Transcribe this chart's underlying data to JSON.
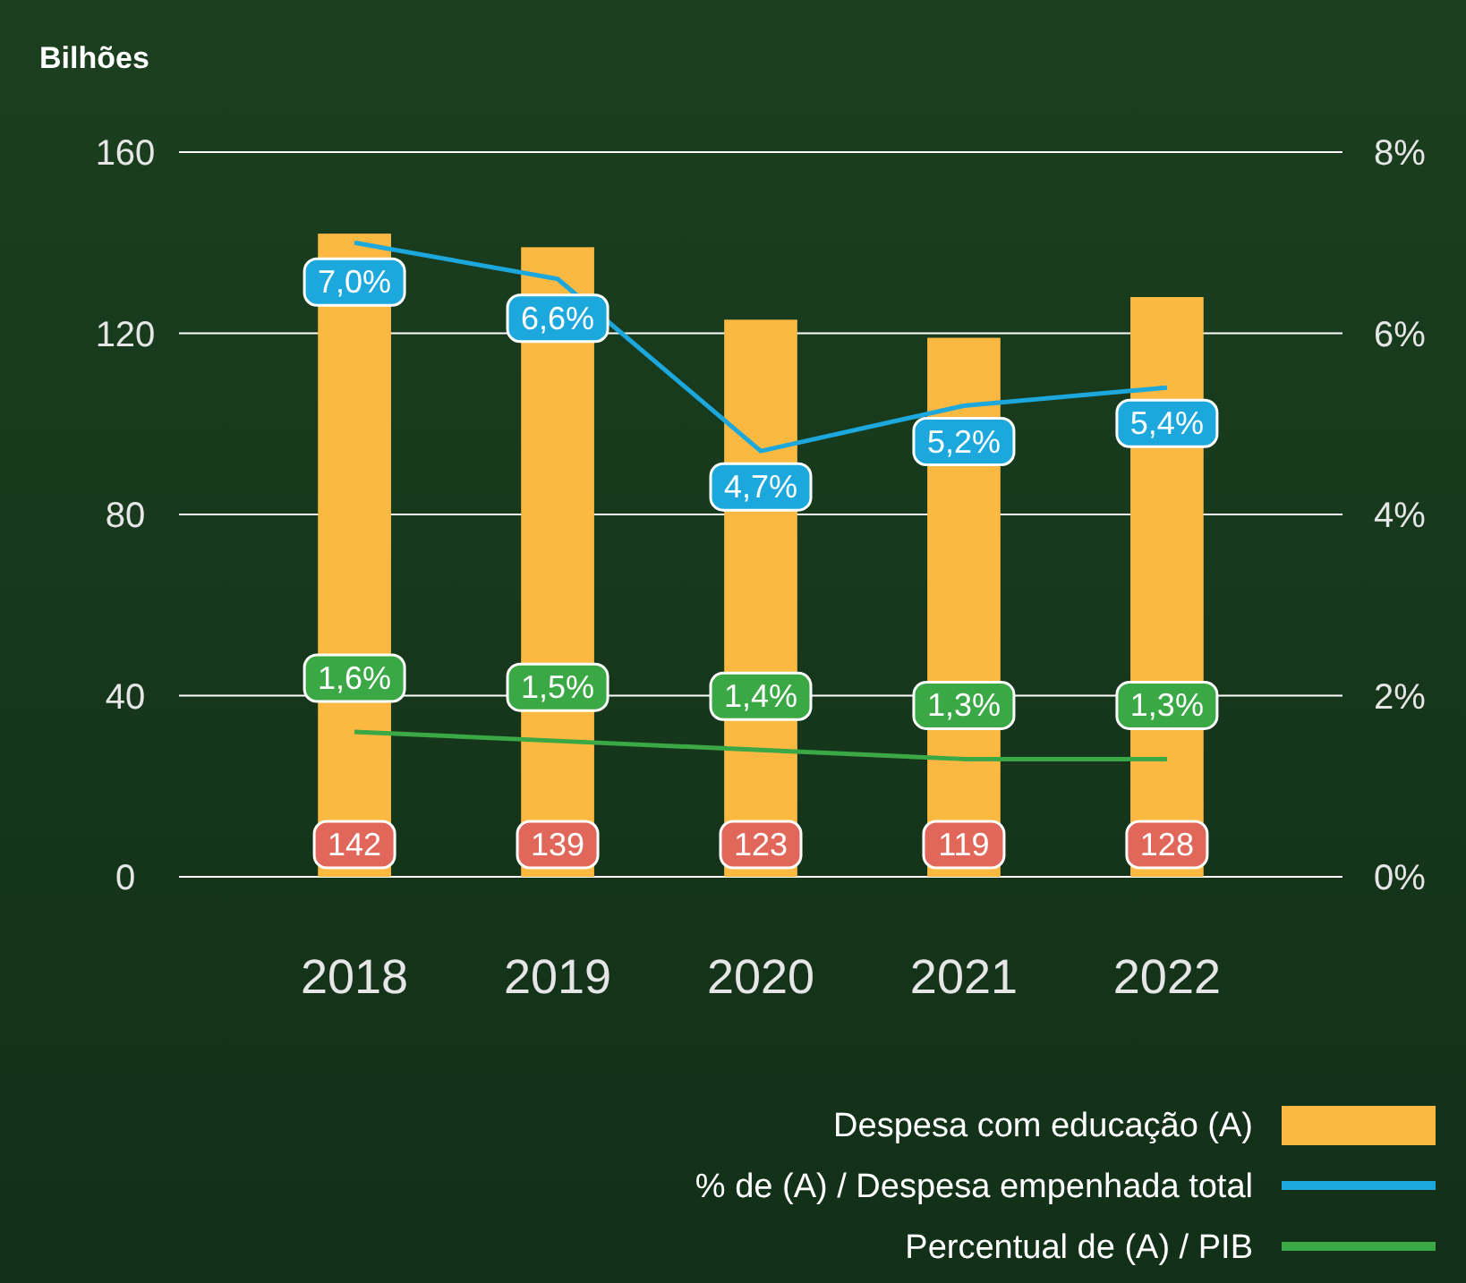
{
  "chart_data": {
    "type": "bar",
    "ylabel": "Bilhões",
    "categories": [
      "2018",
      "2019",
      "2020",
      "2021",
      "2022"
    ],
    "series": [
      {
        "name": "Despesa com educação (A)",
        "color": "#fbb942",
        "values": [
          142,
          139,
          123,
          119,
          128
        ],
        "value_labels": [
          "142",
          "139",
          "123",
          "119",
          "128"
        ]
      },
      {
        "name": "% de (A) / Despesa empenhada total",
        "type": "line",
        "axis": "y2",
        "color": "#1ca8dd",
        "values": [
          7.0,
          6.6,
          4.7,
          5.2,
          5.4
        ],
        "value_labels": [
          "7,0%",
          "6,6%",
          "4,7%",
          "5,2%",
          "5,4%"
        ]
      },
      {
        "name": "Percentual de (A) / PIB",
        "type": "line",
        "axis": "y2",
        "color": "#3aa845",
        "values": [
          1.6,
          1.5,
          1.4,
          1.3,
          1.3
        ],
        "value_labels": [
          "1,6%",
          "1,5%",
          "1,4%",
          "1,3%",
          "1,3%"
        ]
      }
    ],
    "ylim": [
      0,
      160
    ],
    "yticks": [
      0,
      40,
      80,
      120,
      160
    ],
    "y2lim": [
      0,
      8
    ],
    "y2ticks": [
      {
        "value": 0,
        "label": "0%"
      },
      {
        "value": 2,
        "label": "2%"
      },
      {
        "value": 4,
        "label": "4%"
      },
      {
        "value": 6,
        "label": "6%"
      },
      {
        "value": 8,
        "label": "8%"
      }
    ],
    "grid": "y",
    "legend": "bottom right",
    "marker": "none",
    "line_style": "solid"
  }
}
